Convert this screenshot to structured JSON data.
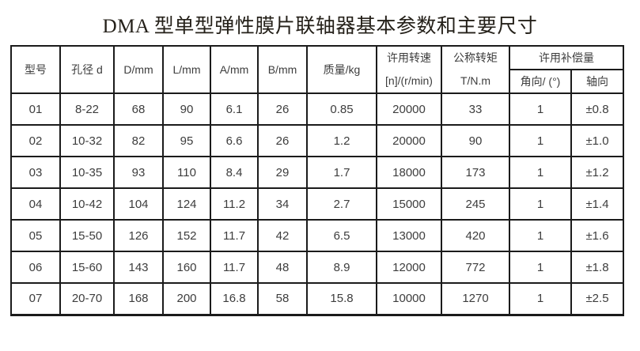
{
  "page": {
    "title": "DMA 型单型弹性膜片联轴器基本参数和主要尺寸"
  },
  "colors": {
    "background": "#ffffff",
    "border": "#1b1b1b",
    "text": "#3d3d3d",
    "title_text": "#242019"
  },
  "table": {
    "headers": {
      "model": "型号",
      "bore": "孔径 d",
      "diameter": "D/mm",
      "length": "L/mm",
      "a_dim": "A/mm",
      "b_dim": "B/mm",
      "mass": "质量/kg",
      "speed_line1": "许用转速",
      "speed_line2": "[n]/(r/min)",
      "torque_line1": "公称转矩",
      "torque_line2": "T/N.m",
      "compensation_group": "许用补偿量",
      "angular": "角向/ (°)",
      "axial": "轴向"
    },
    "rows": [
      [
        "01",
        "8-22",
        "68",
        "90",
        "6.1",
        "26",
        "0.85",
        "20000",
        "33",
        "1",
        "±0.8"
      ],
      [
        "02",
        "10-32",
        "82",
        "95",
        "6.6",
        "26",
        "1.2",
        "20000",
        "90",
        "1",
        "±1.0"
      ],
      [
        "03",
        "10-35",
        "93",
        "110",
        "8.4",
        "29",
        "1.7",
        "18000",
        "173",
        "1",
        "±1.2"
      ],
      [
        "04",
        "10-42",
        "104",
        "124",
        "11.2",
        "34",
        "2.7",
        "15000",
        "245",
        "1",
        "±1.4"
      ],
      [
        "05",
        "15-50",
        "126",
        "152",
        "11.7",
        "42",
        "6.5",
        "13000",
        "420",
        "1",
        "±1.6"
      ],
      [
        "06",
        "15-60",
        "143",
        "160",
        "11.7",
        "48",
        "8.9",
        "12000",
        "772",
        "1",
        "±1.8"
      ],
      [
        "07",
        "20-70",
        "168",
        "200",
        "16.8",
        "58",
        "15.8",
        "10000",
        "1270",
        "1",
        "±2.5"
      ]
    ]
  }
}
